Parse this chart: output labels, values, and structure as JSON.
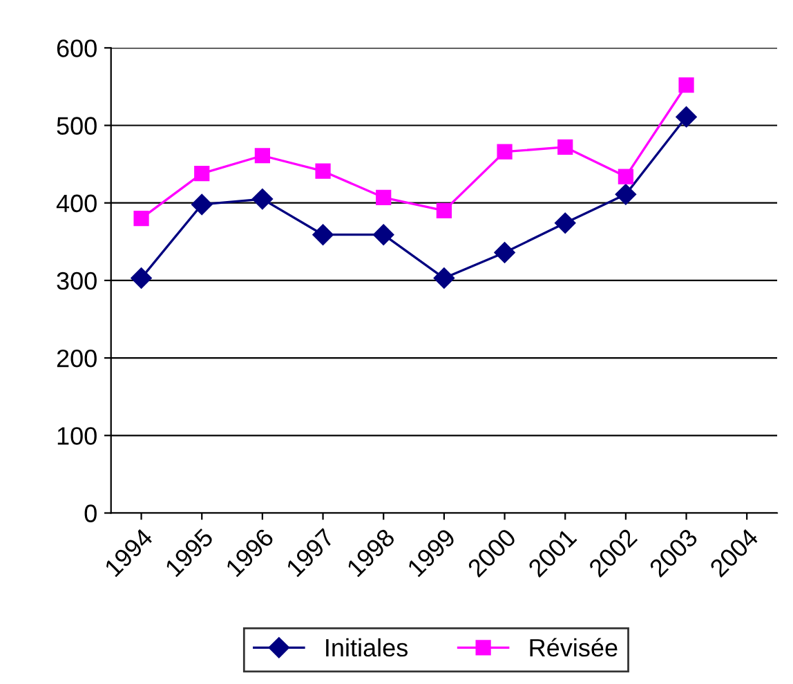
{
  "chart_data": {
    "type": "line",
    "categories": [
      "1994",
      "1995",
      "1996",
      "1997",
      "1998",
      "1999",
      "2000",
      "2001",
      "2002",
      "2003",
      "2004"
    ],
    "series": [
      {
        "name": "Initiales",
        "color": "#000080",
        "marker": "diamond",
        "values": [
          303,
          398,
          405,
          359,
          359,
          303,
          336,
          374,
          411,
          511,
          null
        ]
      },
      {
        "name": "Révisée",
        "color": "#ff00ff",
        "marker": "square",
        "values": [
          380,
          438,
          461,
          441,
          407,
          390,
          466,
          472,
          434,
          552,
          null
        ]
      }
    ],
    "ylim": [
      0,
      600
    ],
    "yticks": [
      0,
      100,
      200,
      300,
      400,
      500,
      600
    ],
    "grid": "y",
    "legend": "bottom"
  }
}
